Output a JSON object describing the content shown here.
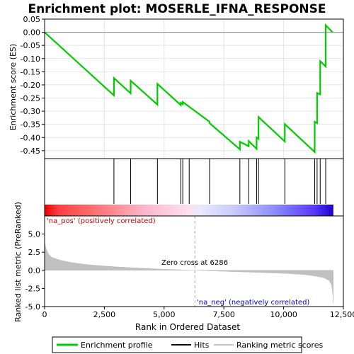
{
  "title": "Enrichment plot: MOSERLE_IFNA_RESPONSE",
  "chart_data": {
    "type": "line",
    "title": "Enrichment plot: MOSERLE_IFNA_RESPONSE",
    "xlabel": "Rank in Ordered Dataset",
    "xlim": [
      0,
      12500
    ],
    "x_ticks": [
      0,
      2500,
      5000,
      7500,
      10000,
      12500
    ],
    "x_tick_labels": [
      "0",
      "2,500",
      "5,000",
      "7,500",
      "10,000",
      "12,500"
    ],
    "es_panel": {
      "ylabel": "Enrichment score (ES)",
      "ylim": [
        -0.48,
        0.05
      ],
      "y_ticks": [
        0.05,
        0.0,
        -0.05,
        -0.1,
        -0.15,
        -0.2,
        -0.25,
        -0.3,
        -0.35,
        -0.4,
        -0.45
      ],
      "y_tick_labels": [
        "0.05",
        "0.00",
        "-0.05",
        "-0.10",
        "-0.15",
        "-0.20",
        "-0.25",
        "-0.30",
        "-0.35",
        "-0.40",
        "-0.45"
      ],
      "grid": true,
      "series": [
        {
          "name": "Enrichment profile",
          "color": "#00cc00",
          "x": [
            0,
            2900,
            2900,
            3600,
            3600,
            4720,
            4720,
            5700,
            5700,
            5780,
            5780,
            6050,
            6900,
            6900,
            8170,
            8170,
            8540,
            8540,
            8870,
            8870,
            8950,
            8950,
            10050,
            10050,
            11300,
            11300,
            11400,
            11400,
            11530,
            11530,
            11760,
            11760,
            12050
          ],
          "y": [
            0.0,
            -0.24,
            -0.174,
            -0.232,
            -0.184,
            -0.275,
            -0.196,
            -0.277,
            -0.268,
            -0.273,
            -0.265,
            -0.283,
            -0.34,
            -0.345,
            -0.445,
            -0.416,
            -0.433,
            -0.413,
            -0.443,
            -0.4,
            -0.405,
            -0.322,
            -0.415,
            -0.349,
            -0.455,
            -0.34,
            -0.345,
            -0.231,
            -0.236,
            -0.11,
            -0.13,
            0.027,
            0.0
          ]
        }
      ]
    },
    "hits": [
      2900,
      3600,
      4720,
      5700,
      5780,
      6050,
      6900,
      8170,
      8540,
      8870,
      8950,
      10050,
      11300,
      11400,
      11530,
      11760
    ],
    "metric_panel": {
      "ylabel": "Ranked list metric (PreRanked)",
      "ylim": [
        -5.0,
        7.5
      ],
      "y_ticks": [
        -5.0,
        -2.5,
        0.0,
        2.5,
        5.0
      ],
      "y_tick_labels": [
        "-5.0",
        "-2.5",
        "0.0",
        "2.5",
        "5.0"
      ],
      "series": [
        {
          "name": "Ranking metric scores",
          "color": "#c0c0c0",
          "x": [
            0,
            60,
            150,
            300,
            600,
            1000,
            1500,
            2000,
            3000,
            4000,
            5000,
            6286,
            7500,
            9000,
            10000,
            10800,
            11300,
            11700,
            11900,
            12000,
            12050,
            12080
          ],
          "y": [
            3.9,
            3.0,
            2.3,
            1.8,
            1.45,
            1.15,
            0.9,
            0.72,
            0.48,
            0.3,
            0.15,
            0.0,
            -0.14,
            -0.3,
            -0.42,
            -0.58,
            -0.78,
            -1.05,
            -1.4,
            -2.0,
            -3.0,
            -4.6
          ]
        }
      ],
      "zero_cross_label": "Zero cross at 6286",
      "zero_cross": 6286,
      "pos_label": "'na_pos' (positively correlated)",
      "neg_label": "'na_neg' (negatively correlated)"
    },
    "legend": {
      "placement": "bottom",
      "entries": [
        {
          "label": "Enrichment profile",
          "color": "#00cc00"
        },
        {
          "label": "Hits",
          "color": "#000000"
        },
        {
          "label": "Ranking metric scores",
          "color": "#c0c0c0"
        }
      ]
    }
  }
}
